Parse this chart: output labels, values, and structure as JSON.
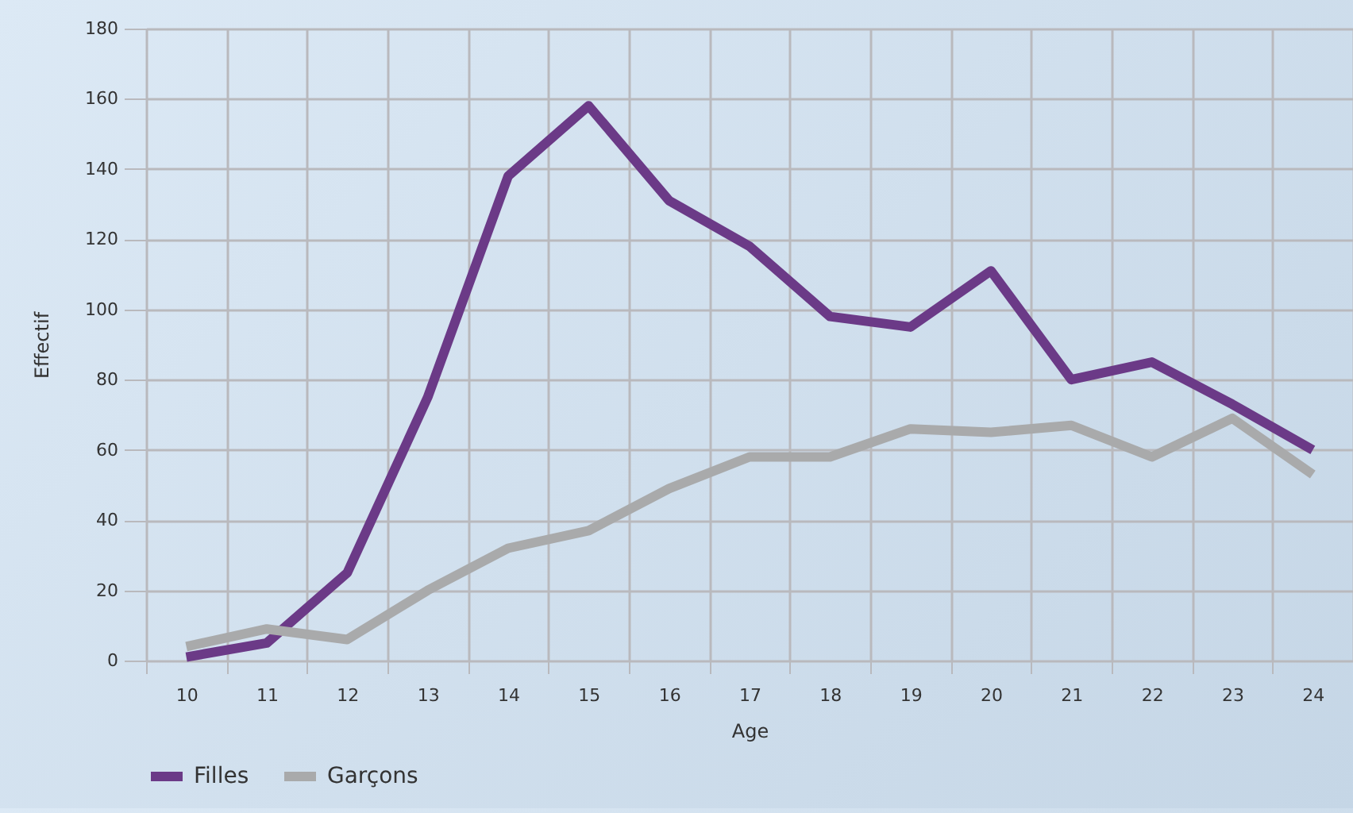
{
  "chart_data": {
    "type": "line",
    "xlabel": "Age",
    "ylabel": "Effectif",
    "categories": [
      "10",
      "11",
      "12",
      "13",
      "14",
      "15",
      "16",
      "17",
      "18",
      "19",
      "20",
      "21",
      "22",
      "23",
      "24"
    ],
    "series": [
      {
        "name": "Filles",
        "color": "#6b3a87",
        "values": [
          1,
          5,
          25,
          75,
          138,
          158,
          131,
          118,
          98,
          95,
          111,
          80,
          85,
          73,
          60
        ]
      },
      {
        "name": "Garçons",
        "color": "#a9aaab",
        "values": [
          4,
          9,
          6,
          20,
          32,
          37,
          49,
          58,
          58,
          66,
          65,
          67,
          58,
          69,
          53
        ]
      }
    ],
    "ylim": [
      0,
      180
    ],
    "yticks": [
      0,
      20,
      40,
      60,
      80,
      100,
      120,
      140,
      160,
      180
    ],
    "grid": true,
    "legend": "bottom",
    "marker": "none",
    "line_style": "solid"
  }
}
